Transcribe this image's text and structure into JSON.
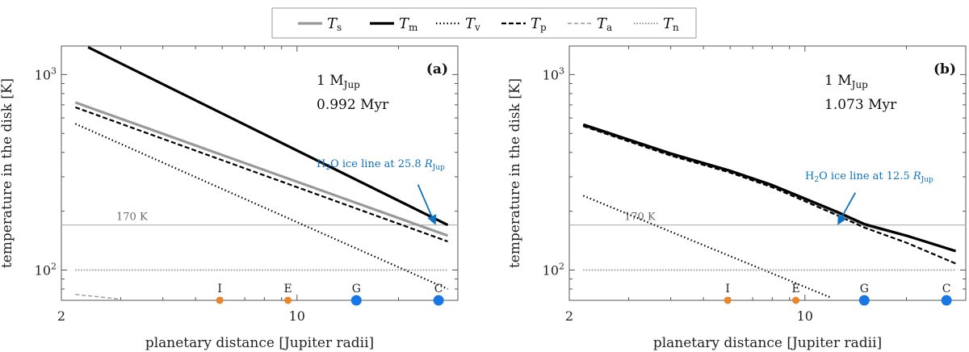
{
  "legend": [
    {
      "symbol": "T",
      "sub": "s"
    },
    {
      "symbol": "T",
      "sub": "m"
    },
    {
      "symbol": "T",
      "sub": "v"
    },
    {
      "symbol": "T",
      "sub": "p"
    },
    {
      "symbol": "T",
      "sub": "a"
    },
    {
      "symbol": "T",
      "sub": "n"
    }
  ],
  "colors": {
    "ts": "#999999",
    "tm": "#000000",
    "tv": "#000000",
    "tp": "#000000",
    "ta": "#999999",
    "tn": "#999999",
    "ice": "#0b72c4",
    "io_eu": "#e8862a",
    "ga_ca": "#1877e5",
    "ref": "#b0b0b0"
  },
  "chart_data": [
    {
      "type": "line",
      "panel_label": "(a)",
      "mass_label": "1 M",
      "mass_sub": "Jup",
      "time_label": "0.992 Myr",
      "xlabel": "planetary distance [Jupiter radii]",
      "ylabel": "temperature in the disk [K]",
      "x_scale": "log",
      "y_scale": "log",
      "xlim": [
        2,
        30
      ],
      "ylim": [
        70,
        1400
      ],
      "x_ticks": [
        2,
        10
      ],
      "y_ticks": [
        {
          "value": 100,
          "base": "10",
          "exp": "2"
        },
        {
          "value": 1000,
          "base": "10",
          "exp": "3"
        }
      ],
      "reference_line": {
        "value": 170,
        "label": "170 K"
      },
      "ice_line": {
        "x": 25.8,
        "y": 170,
        "label_prefix": "H",
        "label_sub": "2",
        "label_mid": "O ice line at 25.8 ",
        "label_R": "R",
        "label_Rsub": "Jup"
      },
      "series": [
        {
          "name": "Ts",
          "key": "ts",
          "x": [
            2.2,
            28
          ],
          "y": [
            720,
            150
          ]
        },
        {
          "name": "Tm",
          "key": "tm",
          "x": [
            2.4,
            28
          ],
          "y": [
            1380,
            170
          ]
        },
        {
          "name": "Tv",
          "key": "tv",
          "x": [
            2.2,
            28
          ],
          "y": [
            560,
            80
          ]
        },
        {
          "name": "Tp",
          "key": "tp",
          "x": [
            2.2,
            28
          ],
          "y": [
            680,
            140
          ]
        },
        {
          "name": "Ta",
          "key": "ta",
          "x": [
            2.2,
            3.0
          ],
          "y": [
            75,
            71
          ]
        },
        {
          "name": "Tn",
          "key": "tn",
          "x": [
            2.2,
            28
          ],
          "y": [
            100,
            100
          ]
        }
      ],
      "moons": [
        {
          "label": "I",
          "x": 5.9,
          "kind": "io_eu"
        },
        {
          "label": "E",
          "x": 9.4,
          "kind": "io_eu"
        },
        {
          "label": "G",
          "x": 15,
          "kind": "ga_ca"
        },
        {
          "label": "C",
          "x": 26.3,
          "kind": "ga_ca"
        }
      ]
    },
    {
      "type": "line",
      "panel_label": "(b)",
      "mass_label": "1 M",
      "mass_sub": "Jup",
      "time_label": "1.073 Myr",
      "xlabel": "planetary distance [Jupiter radii]",
      "ylabel": "temperature in the disk [K]",
      "x_scale": "log",
      "y_scale": "log",
      "xlim": [
        2,
        30
      ],
      "ylim": [
        70,
        1400
      ],
      "x_ticks": [
        2,
        10
      ],
      "y_ticks": [
        {
          "value": 100,
          "base": "10",
          "exp": "2"
        },
        {
          "value": 1000,
          "base": "10",
          "exp": "3"
        }
      ],
      "reference_line": {
        "value": 170,
        "label": "170 K"
      },
      "ice_line": {
        "x": 12.5,
        "y": 170,
        "label_prefix": "H",
        "label_sub": "2",
        "label_mid": "O ice line at 12.5 ",
        "label_R": "R",
        "label_Rsub": "Jup"
      },
      "series": [
        {
          "name": "Ts",
          "key": "ts",
          "x": [
            2.2,
            4,
            6,
            8,
            10,
            12.5,
            15,
            20,
            28
          ],
          "y": [
            550,
            390,
            320,
            270,
            230,
            195,
            170,
            150,
            125
          ]
        },
        {
          "name": "Tm",
          "key": "tm",
          "x": [
            2.2,
            4,
            6,
            8,
            10,
            12.5,
            15,
            20,
            28
          ],
          "y": [
            555,
            395,
            322,
            272,
            232,
            198,
            172,
            150,
            125
          ]
        },
        {
          "name": "Tv",
          "key": "tv",
          "x": [
            2.2,
            12
          ],
          "y": [
            240,
            72
          ]
        },
        {
          "name": "Tp",
          "key": "tp",
          "x": [
            2.2,
            4,
            6,
            8,
            10,
            12.5,
            15,
            20,
            28
          ],
          "y": [
            545,
            385,
            315,
            265,
            225,
            190,
            165,
            138,
            108
          ]
        },
        {
          "name": "Tn",
          "key": "tn",
          "x": [
            2.2,
            28
          ],
          "y": [
            100,
            100
          ]
        }
      ],
      "moons": [
        {
          "label": "I",
          "x": 5.9,
          "kind": "io_eu"
        },
        {
          "label": "E",
          "x": 9.4,
          "kind": "io_eu"
        },
        {
          "label": "G",
          "x": 15,
          "kind": "ga_ca"
        },
        {
          "label": "C",
          "x": 26.3,
          "kind": "ga_ca"
        }
      ]
    }
  ]
}
